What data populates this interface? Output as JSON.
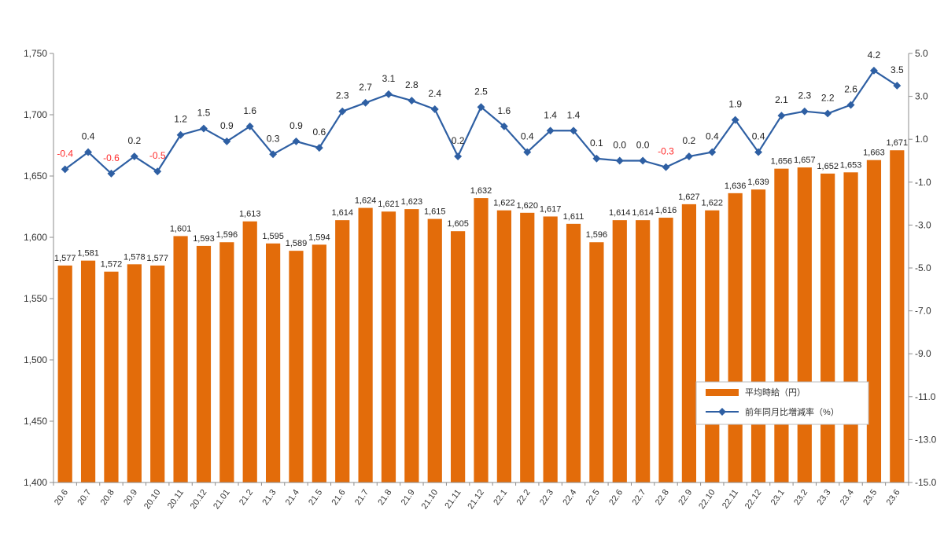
{
  "chart_data": {
    "type": "bar",
    "categories": [
      "20.6",
      "20.7",
      "20.8",
      "20.9",
      "20.10",
      "20.11",
      "20.12",
      "21.01",
      "21.2",
      "21.3",
      "21.4",
      "21.5",
      "21.6",
      "21.7",
      "21.8",
      "21.9",
      "21.10",
      "21.11",
      "21.12",
      "22.1",
      "22.2",
      "22.3",
      "22.4",
      "22.5",
      "22.6",
      "22.7",
      "22.8",
      "22.9",
      "22.10",
      "22.11",
      "22.12",
      "23.1",
      "23.2",
      "23.3",
      "23.4",
      "23.5",
      "23.6"
    ],
    "series": [
      {
        "name": "平均時給（円）",
        "type": "bar",
        "axis": "left",
        "color": "#e36c0a",
        "values": [
          1577,
          1581,
          1572,
          1578,
          1577,
          1601,
          1593,
          1596,
          1613,
          1595,
          1589,
          1594,
          1614,
          1624,
          1621,
          1623,
          1615,
          1605,
          1632,
          1622,
          1620,
          1617,
          1611,
          1596,
          1614,
          1614,
          1616,
          1627,
          1622,
          1636,
          1639,
          1656,
          1657,
          1652,
          1653,
          1663,
          1671
        ],
        "labels": [
          "1,577",
          "1,581",
          "1,572",
          "1,578",
          "1,577",
          "1,601",
          "1,593",
          "1,596",
          "1,613",
          "1,595",
          "1,589",
          "1,594",
          "1,614",
          "1,624",
          "1,621",
          "1,623",
          "1,615",
          "1,605",
          "1,632",
          "1,622",
          "1,620",
          "1,617",
          "1,611",
          "1,596",
          "1,614",
          "1,614",
          "1,616",
          "1,627",
          "1,622",
          "1,636",
          "1,639",
          "1,656",
          "1,657",
          "1,652",
          "1,653",
          "1,663",
          "1,671"
        ]
      },
      {
        "name": "前年同月比増減率（%）",
        "type": "line",
        "axis": "right",
        "color": "#2e5fa3",
        "values": [
          -0.4,
          0.4,
          -0.6,
          0.2,
          -0.5,
          1.2,
          1.5,
          0.9,
          1.6,
          0.3,
          0.9,
          0.6,
          2.3,
          2.7,
          3.1,
          2.8,
          2.4,
          0.2,
          2.5,
          1.6,
          0.4,
          1.4,
          1.4,
          0.1,
          0.0,
          0.0,
          -0.3,
          0.2,
          0.4,
          1.9,
          0.4,
          2.1,
          2.3,
          2.2,
          2.6,
          4.2,
          3.5
        ],
        "labels": [
          "-0.4",
          "0.4",
          "-0.6",
          "0.2",
          "-0.5",
          "1.2",
          "1.5",
          "0.9",
          "1.6",
          "0.3",
          "0.9",
          "0.6",
          "2.3",
          "2.7",
          "3.1",
          "2.8",
          "2.4",
          "0.2",
          "2.5",
          "1.6",
          "0.4",
          "1.4",
          "1.4",
          "0.1",
          "0.0",
          "0.0",
          "-0.3",
          "0.2",
          "0.4",
          "1.9",
          "0.4",
          "2.1",
          "2.3",
          "2.2",
          "2.6",
          "4.2",
          "3.5"
        ]
      }
    ],
    "left_axis": {
      "min": 1400,
      "max": 1750,
      "ticks": [
        1400,
        1450,
        1500,
        1550,
        1600,
        1650,
        1700,
        1750
      ],
      "tick_labels": [
        "1,400",
        "1,450",
        "1,500",
        "1,550",
        "1,600",
        "1,650",
        "1,700",
        "1,750"
      ]
    },
    "right_axis": {
      "min": -15,
      "max": 5,
      "ticks": [
        -15,
        -13,
        -11,
        -9,
        -7,
        -5,
        -3,
        -1,
        1,
        3,
        5
      ],
      "tick_labels": [
        "-15.0",
        "-13.0",
        "-11.0",
        "-9.0",
        "-7.0",
        "-5.0",
        "-3.0",
        "-1.0",
        "1.0",
        "3.0",
        "5.0"
      ]
    },
    "title": "",
    "xlabel": "",
    "ylabel": "",
    "grid": false,
    "legend_position": "right-lower",
    "negative_label_color": "#ff2a2a"
  }
}
